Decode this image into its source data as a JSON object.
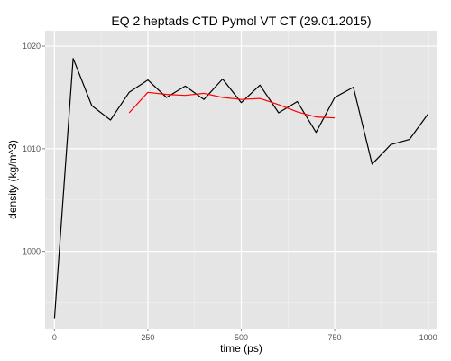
{
  "chart_data": {
    "type": "line",
    "title": "EQ 2 heptads CTD Pymol VT CT (29.01.2015)",
    "xlabel": "time (ps)",
    "ylabel": "density (kg/m^3)",
    "xlim": [
      -25,
      1025
    ],
    "ylim": [
      992.5,
      1021.5
    ],
    "x_ticks": [
      0,
      250,
      500,
      750,
      1000
    ],
    "y_ticks": [
      1000,
      1010,
      1020
    ],
    "grid": true,
    "background": "#e5e5e5",
    "series": [
      {
        "color": "#000000",
        "x": [
          0,
          50,
          100,
          150,
          200,
          250,
          300,
          350,
          400,
          450,
          500,
          550,
          600,
          650,
          700,
          750,
          800,
          850,
          900,
          950,
          1000
        ],
        "y": [
          993.5,
          1018.8,
          1014.2,
          1012.8,
          1015.5,
          1016.7,
          1015.0,
          1016.1,
          1014.8,
          1016.8,
          1014.5,
          1016.2,
          1013.5,
          1014.6,
          1011.6,
          1015.0,
          1016.0,
          1008.5,
          1010.4,
          1010.9,
          1013.4
        ]
      },
      {
        "color": "#ff0000",
        "x": [
          200,
          250,
          300,
          350,
          400,
          450,
          500,
          550,
          600,
          650,
          700,
          750
        ],
        "y": [
          1013.5,
          1015.5,
          1015.3,
          1015.2,
          1015.4,
          1015.0,
          1014.8,
          1014.9,
          1014.3,
          1013.6,
          1013.1,
          1013.0
        ]
      }
    ]
  }
}
